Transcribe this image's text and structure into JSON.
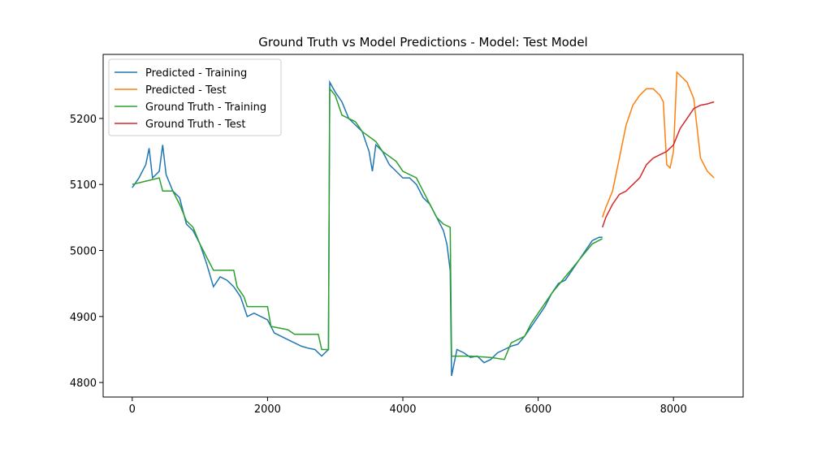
{
  "chart_data": {
    "type": "line",
    "title": "Ground Truth vs Model Predictions - Model: Test Model",
    "xlim": [
      -430,
      9030
    ],
    "ylim": [
      4778,
      5297
    ],
    "xticks": [
      0,
      2000,
      4000,
      6000,
      8000
    ],
    "yticks": [
      4800,
      4900,
      5000,
      5100,
      5200
    ],
    "legend": "upper left",
    "series": [
      {
        "name": "Predicted - Training",
        "color": "#1f77b4",
        "x": [
          0,
          100,
          200,
          250,
          300,
          400,
          450,
          500,
          600,
          700,
          800,
          900,
          1000,
          1100,
          1200,
          1300,
          1400,
          1500,
          1600,
          1700,
          1800,
          1900,
          2000,
          2100,
          2200,
          2300,
          2400,
          2500,
          2600,
          2700,
          2800,
          2850,
          2900,
          2920,
          3000,
          3100,
          3200,
          3300,
          3400,
          3500,
          3550,
          3600,
          3700,
          3800,
          3900,
          4000,
          4100,
          4200,
          4300,
          4400,
          4500,
          4600,
          4650,
          4700,
          4720,
          4800,
          4900,
          5000,
          5100,
          5200,
          5300,
          5400,
          5500,
          5600,
          5700,
          5800,
          5900,
          6000,
          6100,
          6200,
          6300,
          6400,
          6500,
          6600,
          6700,
          6800,
          6900,
          6950
        ],
        "values": [
          5095,
          5110,
          5130,
          5155,
          5110,
          5120,
          5160,
          5115,
          5090,
          5080,
          5040,
          5030,
          5010,
          4980,
          4945,
          4960,
          4955,
          4945,
          4930,
          4900,
          4905,
          4900,
          4895,
          4875,
          4870,
          4865,
          4860,
          4855,
          4852,
          4850,
          4840,
          4845,
          4850,
          5255,
          5240,
          5225,
          5200,
          5190,
          5180,
          5150,
          5120,
          5160,
          5150,
          5130,
          5120,
          5110,
          5110,
          5100,
          5080,
          5070,
          5050,
          5030,
          5010,
          4970,
          4810,
          4850,
          4845,
          4838,
          4840,
          4830,
          4835,
          4845,
          4850,
          4855,
          4858,
          4870,
          4885,
          4900,
          4915,
          4935,
          4950,
          4955,
          4970,
          4985,
          5000,
          5015,
          5020,
          5020
        ]
      },
      {
        "name": "Predicted - Test",
        "color": "#ff7f0e",
        "x": [
          6950,
          7000,
          7100,
          7200,
          7300,
          7400,
          7500,
          7600,
          7700,
          7800,
          7850,
          7900,
          7950,
          8000,
          8050,
          8100,
          8200,
          8300,
          8400,
          8500,
          8600
        ],
        "values": [
          5050,
          5065,
          5090,
          5140,
          5190,
          5220,
          5235,
          5245,
          5245,
          5235,
          5225,
          5130,
          5125,
          5150,
          5270,
          5265,
          5255,
          5230,
          5140,
          5120,
          5110
        ]
      },
      {
        "name": "Ground Truth - Training",
        "color": "#2ca02c",
        "x": [
          0,
          200,
          400,
          450,
          600,
          700,
          800,
          900,
          1000,
          1100,
          1200,
          1500,
          1550,
          1650,
          1700,
          2000,
          2050,
          2300,
          2400,
          2750,
          2800,
          2900,
          2920,
          3000,
          3100,
          3300,
          3400,
          3600,
          3700,
          3900,
          4000,
          4200,
          4300,
          4400,
          4500,
          4600,
          4700,
          4720,
          5000,
          5300,
          5500,
          5600,
          5800,
          5900,
          6000,
          6200,
          6400,
          6600,
          6800,
          6950
        ],
        "values": [
          5100,
          5105,
          5110,
          5090,
          5090,
          5070,
          5045,
          5035,
          5010,
          4990,
          4970,
          4970,
          4945,
          4930,
          4915,
          4915,
          4885,
          4880,
          4873,
          4873,
          4850,
          4850,
          5245,
          5235,
          5205,
          5195,
          5180,
          5165,
          5150,
          5135,
          5120,
          5110,
          5090,
          5070,
          5050,
          5040,
          5035,
          4840,
          4840,
          4838,
          4835,
          4860,
          4870,
          4890,
          4905,
          4935,
          4960,
          4985,
          5010,
          5018
        ]
      },
      {
        "name": "Ground Truth - Test",
        "color": "#d62728",
        "x": [
          6950,
          7000,
          7100,
          7200,
          7300,
          7400,
          7500,
          7600,
          7700,
          7800,
          7900,
          8000,
          8100,
          8200,
          8300,
          8400,
          8500,
          8600
        ],
        "values": [
          5035,
          5050,
          5070,
          5085,
          5090,
          5100,
          5110,
          5130,
          5140,
          5145,
          5150,
          5160,
          5185,
          5200,
          5215,
          5220,
          5222,
          5225
        ]
      }
    ]
  }
}
